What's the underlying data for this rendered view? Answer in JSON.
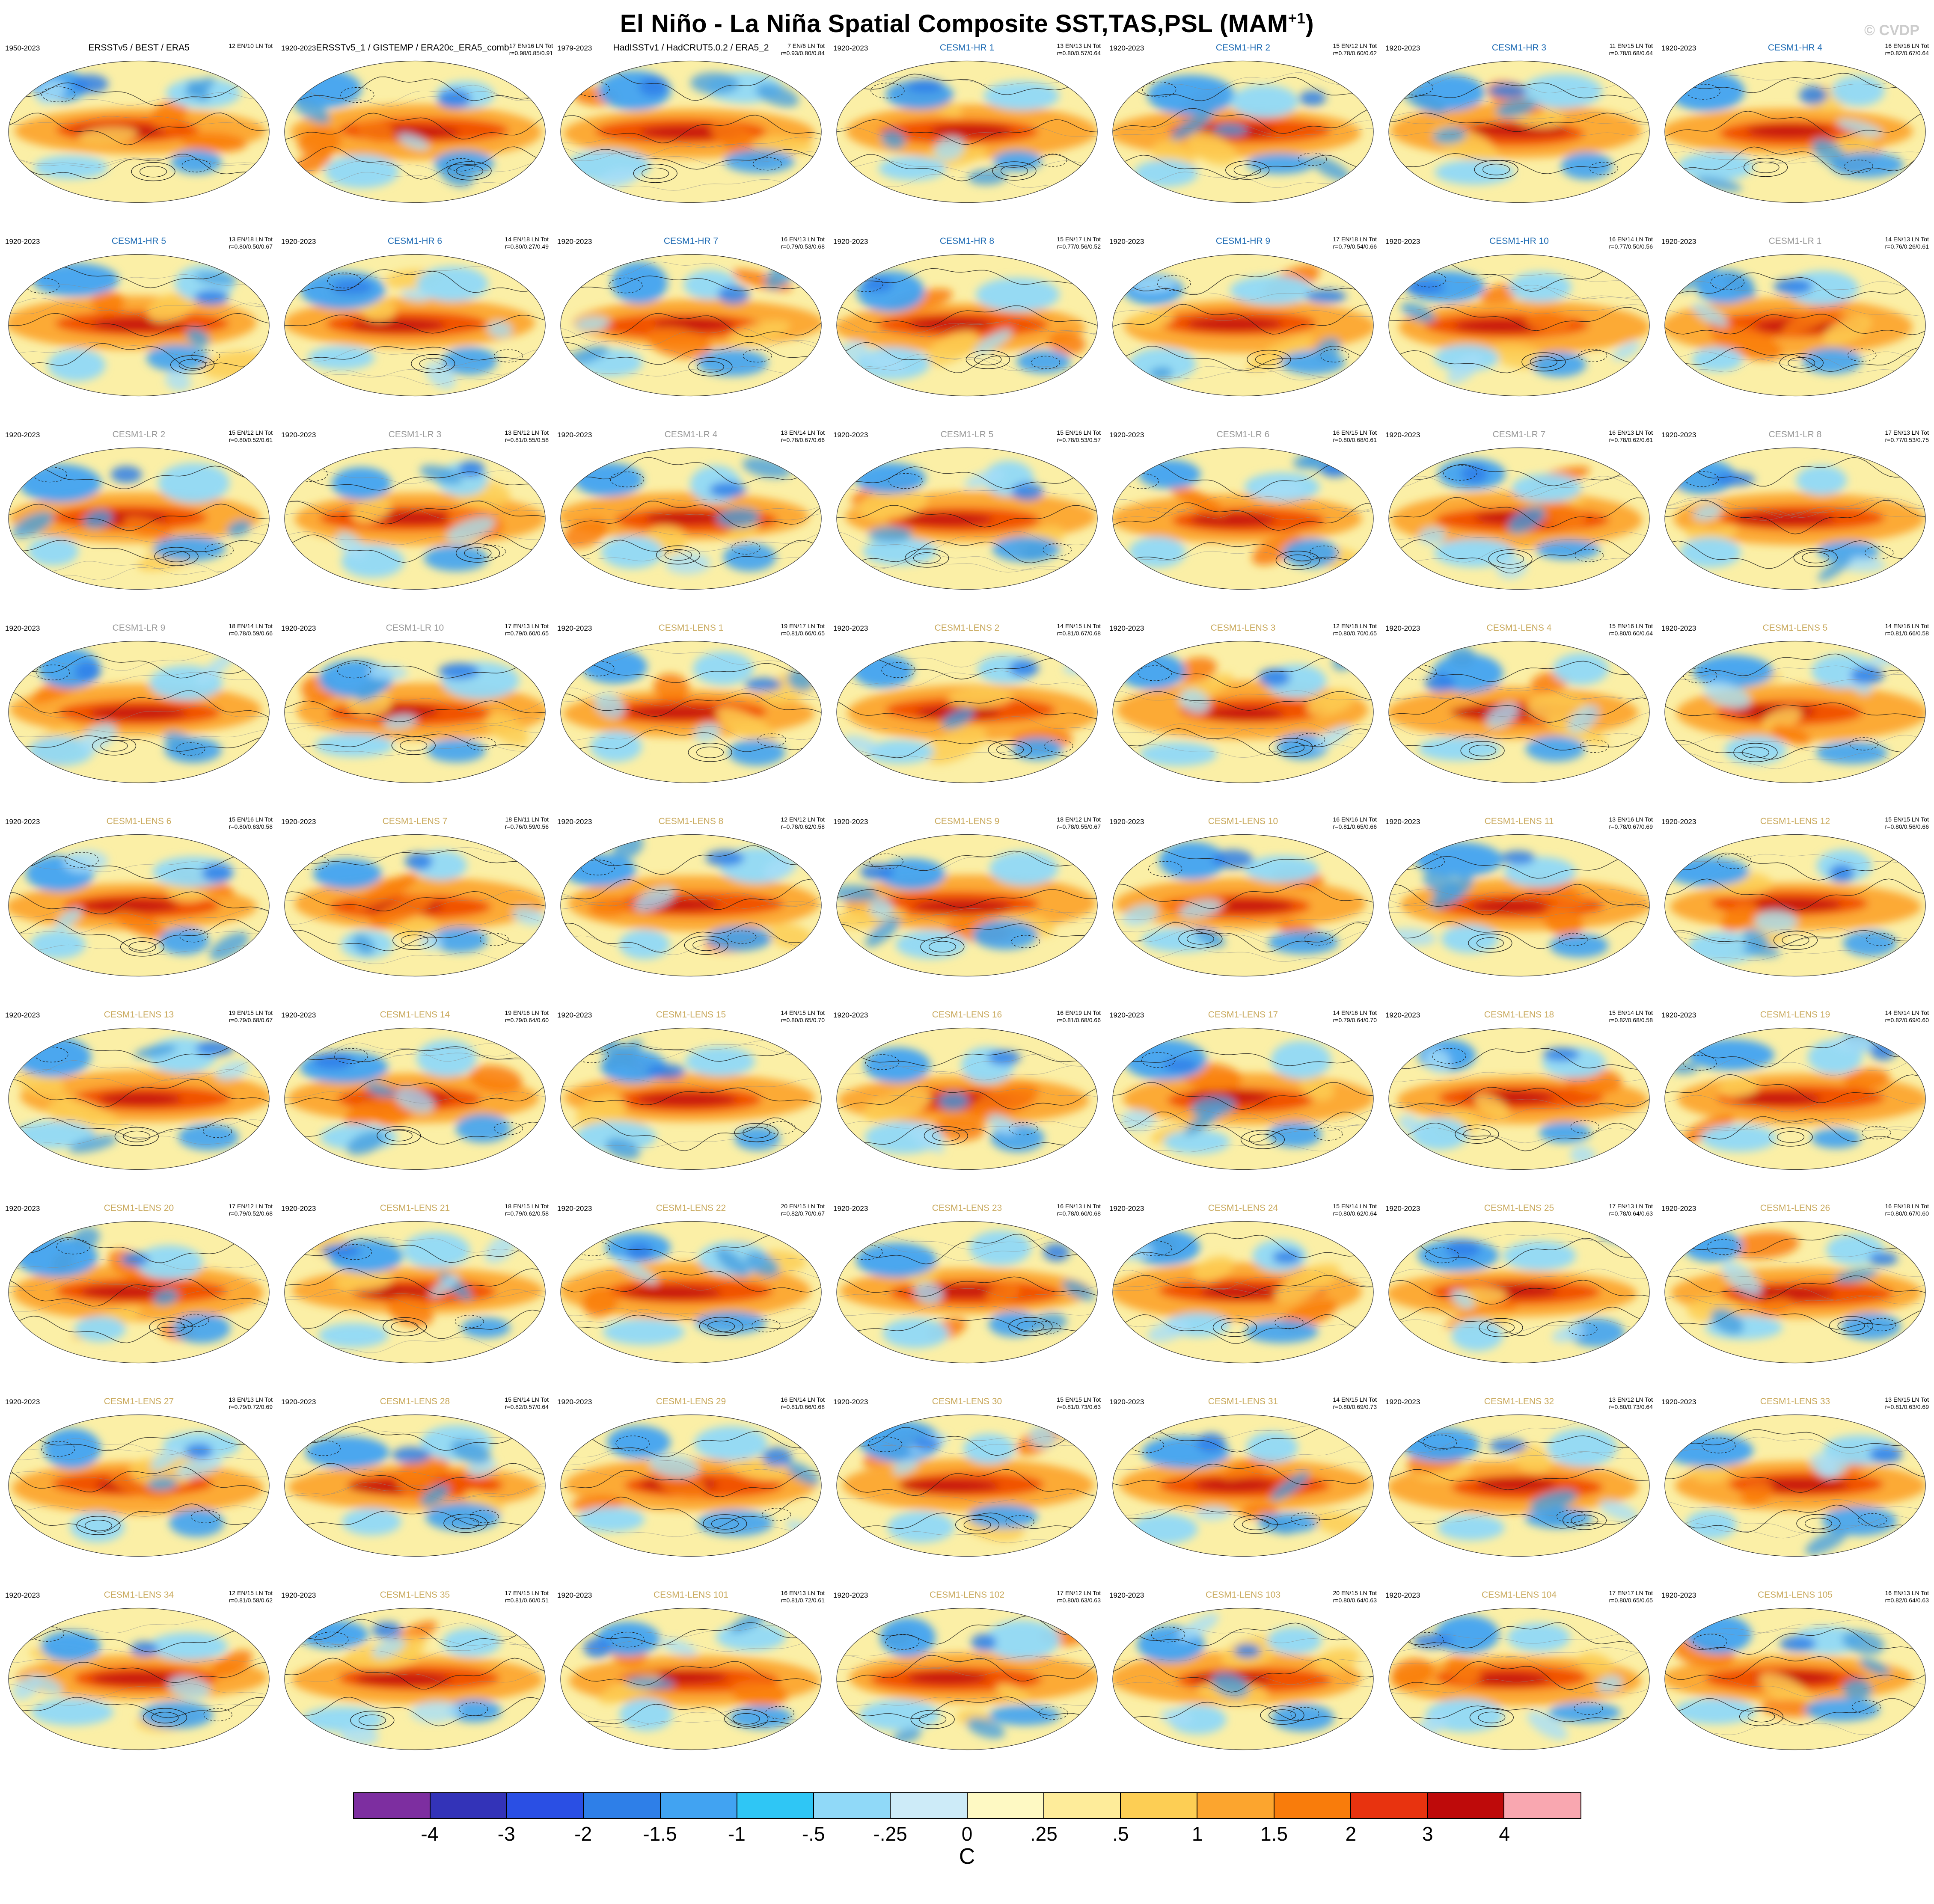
{
  "page": {
    "title_main": "El Niño - La Niña Spatial Composite SST,TAS,PSL (MAM",
    "title_sup": "+1",
    "title_close": ")",
    "copyright": "© CVDP"
  },
  "groups": {
    "obs": "#000000",
    "hr": "#1f6cb4",
    "lr": "#9a9a9a",
    "lens": "#c9a95c"
  },
  "colorbar": {
    "unit": "C",
    "labels": [
      "-4",
      "-3",
      "-2",
      "-1.5",
      "-1",
      "-.5",
      "-.25",
      "0",
      ".25",
      ".5",
      "1",
      "1.5",
      "2",
      "3",
      "4"
    ],
    "colors": [
      "#7D2EA0",
      "#3333B8",
      "#2A4FE4",
      "#2E7FE8",
      "#41A3F2",
      "#2FC6F5",
      "#90D9F8",
      "#CDEBF8",
      "#FEF9C3",
      "#FEEC9A",
      "#FDCE54",
      "#FCA52E",
      "#F97C0B",
      "#E8330F",
      "#BE0A0A",
      "#F9A7B0"
    ]
  },
  "chart_data": {
    "type": "heatmap",
    "subtype": "global-anomaly-map-grid",
    "title": "El Niño - La Niña Spatial Composite SST,TAS,PSL (MAM+1)",
    "projection": "robinson",
    "variables": "SST, TAS, PSL composite anomaly",
    "units": "C",
    "levels": [
      -4,
      -3,
      -2,
      -1.5,
      -1,
      -0.5,
      -0.25,
      0,
      0.25,
      0.5,
      1,
      1.5,
      2,
      3,
      4
    ],
    "grid_layout": {
      "rows": 9,
      "columns": 7
    },
    "panels": [
      {
        "title": "ERSSTv5 / BEST / ERA5",
        "group": "obs",
        "years": "1950-2023",
        "counts": "12 EN/10 LN Tot",
        "r": ""
      },
      {
        "title": "ERSSTv5_1 / GISTEMP / ERA20c_ERA5_comb",
        "group": "obs",
        "years": "1920-2023",
        "counts": "17 EN/16 LN Tot",
        "r": "r=0.98/0.85/0.91"
      },
      {
        "title": "HadISSTv1 / HadCRUT5.0.2 / ERA5_2",
        "group": "obs",
        "years": "1979-2023",
        "counts": "7 EN/6 LN Tot",
        "r": "r=0.93/0.80/0.84"
      },
      {
        "title": "CESM1-HR 1",
        "group": "hr",
        "years": "1920-2023",
        "counts": "13 EN/13 LN Tot",
        "r": "r=0.80/0.57/0.64"
      },
      {
        "title": "CESM1-HR 2",
        "group": "hr",
        "years": "1920-2023",
        "counts": "15 EN/12 LN Tot",
        "r": "r=0.78/0.60/0.62"
      },
      {
        "title": "CESM1-HR 3",
        "group": "hr",
        "years": "1920-2023",
        "counts": "11 EN/15 LN Tot",
        "r": "r=0.78/0.68/0.64"
      },
      {
        "title": "CESM1-HR 4",
        "group": "hr",
        "years": "1920-2023",
        "counts": "16 EN/16 LN Tot",
        "r": "r=0.82/0.67/0.64"
      },
      {
        "title": "CESM1-HR 5",
        "group": "hr",
        "years": "1920-2023",
        "counts": "13 EN/18 LN Tot",
        "r": "r=0.80/0.50/0.67"
      },
      {
        "title": "CESM1-HR 6",
        "group": "hr",
        "years": "1920-2023",
        "counts": "14 EN/18 LN Tot",
        "r": "r=0.80/0.27/0.49"
      },
      {
        "title": "CESM1-HR 7",
        "group": "hr",
        "years": "1920-2023",
        "counts": "16 EN/13 LN Tot",
        "r": "r=0.79/0.53/0.68"
      },
      {
        "title": "CESM1-HR 8",
        "group": "hr",
        "years": "1920-2023",
        "counts": "15 EN/17 LN Tot",
        "r": "r=0.77/0.56/0.52"
      },
      {
        "title": "CESM1-HR 9",
        "group": "hr",
        "years": "1920-2023",
        "counts": "17 EN/18 LN Tot",
        "r": "r=0.79/0.54/0.66"
      },
      {
        "title": "CESM1-HR 10",
        "group": "hr",
        "years": "1920-2023",
        "counts": "16 EN/14 LN Tot",
        "r": "r=0.77/0.50/0.56"
      },
      {
        "title": "CESM1-LR 1",
        "group": "lr",
        "years": "1920-2023",
        "counts": "14 EN/13 LN Tot",
        "r": "r=0.76/0.26/0.61"
      },
      {
        "title": "CESM1-LR 2",
        "group": "lr",
        "years": "1920-2023",
        "counts": "15 EN/12 LN Tot",
        "r": "r=0.80/0.52/0.61"
      },
      {
        "title": "CESM1-LR 3",
        "group": "lr",
        "years": "1920-2023",
        "counts": "13 EN/12 LN Tot",
        "r": "r=0.81/0.55/0.58"
      },
      {
        "title": "CESM1-LR 4",
        "group": "lr",
        "years": "1920-2023",
        "counts": "13 EN/14 LN Tot",
        "r": "r=0.78/0.67/0.66"
      },
      {
        "title": "CESM1-LR 5",
        "group": "lr",
        "years": "1920-2023",
        "counts": "15 EN/16 LN Tot",
        "r": "r=0.78/0.53/0.57"
      },
      {
        "title": "CESM1-LR 6",
        "group": "lr",
        "years": "1920-2023",
        "counts": "16 EN/15 LN Tot",
        "r": "r=0.80/0.68/0.61"
      },
      {
        "title": "CESM1-LR 7",
        "group": "lr",
        "years": "1920-2023",
        "counts": "16 EN/13 LN Tot",
        "r": "r=0.78/0.62/0.61"
      },
      {
        "title": "CESM1-LR 8",
        "group": "lr",
        "years": "1920-2023",
        "counts": "17 EN/13 LN Tot",
        "r": "r=0.77/0.53/0.75"
      },
      {
        "title": "CESM1-LR 9",
        "group": "lr",
        "years": "1920-2023",
        "counts": "18 EN/14 LN Tot",
        "r": "r=0.78/0.59/0.66"
      },
      {
        "title": "CESM1-LR 10",
        "group": "lr",
        "years": "1920-2023",
        "counts": "17 EN/13 LN Tot",
        "r": "r=0.79/0.60/0.65"
      },
      {
        "title": "CESM1-LENS 1",
        "group": "lens",
        "years": "1920-2023",
        "counts": "19 EN/17 LN Tot",
        "r": "r=0.81/0.66/0.65"
      },
      {
        "title": "CESM1-LENS 2",
        "group": "lens",
        "years": "1920-2023",
        "counts": "14 EN/15 LN Tot",
        "r": "r=0.81/0.67/0.68"
      },
      {
        "title": "CESM1-LENS 3",
        "group": "lens",
        "years": "1920-2023",
        "counts": "12 EN/18 LN Tot",
        "r": "r=0.80/0.70/0.65"
      },
      {
        "title": "CESM1-LENS 4",
        "group": "lens",
        "years": "1920-2023",
        "counts": "15 EN/16 LN Tot",
        "r": "r=0.80/0.60/0.64"
      },
      {
        "title": "CESM1-LENS 5",
        "group": "lens",
        "years": "1920-2023",
        "counts": "14 EN/16 LN Tot",
        "r": "r=0.81/0.66/0.58"
      },
      {
        "title": "CESM1-LENS 6",
        "group": "lens",
        "years": "1920-2023",
        "counts": "15 EN/16 LN Tot",
        "r": "r=0.80/0.63/0.58"
      },
      {
        "title": "CESM1-LENS 7",
        "group": "lens",
        "years": "1920-2023",
        "counts": "18 EN/11 LN Tot",
        "r": "r=0.76/0.59/0.56"
      },
      {
        "title": "CESM1-LENS 8",
        "group": "lens",
        "years": "1920-2023",
        "counts": "12 EN/12 LN Tot",
        "r": "r=0.78/0.62/0.58"
      },
      {
        "title": "CESM1-LENS 9",
        "group": "lens",
        "years": "1920-2023",
        "counts": "18 EN/12 LN Tot",
        "r": "r=0.78/0.55/0.67"
      },
      {
        "title": "CESM1-LENS 10",
        "group": "lens",
        "years": "1920-2023",
        "counts": "16 EN/16 LN Tot",
        "r": "r=0.81/0.65/0.66"
      },
      {
        "title": "CESM1-LENS 11",
        "group": "lens",
        "years": "1920-2023",
        "counts": "13 EN/16 LN Tot",
        "r": "r=0.78/0.67/0.69"
      },
      {
        "title": "CESM1-LENS 12",
        "group": "lens",
        "years": "1920-2023",
        "counts": "15 EN/15 LN Tot",
        "r": "r=0.80/0.56/0.66"
      },
      {
        "title": "CESM1-LENS 13",
        "group": "lens",
        "years": "1920-2023",
        "counts": "19 EN/15 LN Tot",
        "r": "r=0.79/0.68/0.67"
      },
      {
        "title": "CESM1-LENS 14",
        "group": "lens",
        "years": "1920-2023",
        "counts": "19 EN/16 LN Tot",
        "r": "r=0.79/0.64/0.60"
      },
      {
        "title": "CESM1-LENS 15",
        "group": "lens",
        "years": "1920-2023",
        "counts": "14 EN/15 LN Tot",
        "r": "r=0.80/0.65/0.70"
      },
      {
        "title": "CESM1-LENS 16",
        "group": "lens",
        "years": "1920-2023",
        "counts": "16 EN/19 LN Tot",
        "r": "r=0.81/0.68/0.66"
      },
      {
        "title": "CESM1-LENS 17",
        "group": "lens",
        "years": "1920-2023",
        "counts": "14 EN/16 LN Tot",
        "r": "r=0.79/0.64/0.70"
      },
      {
        "title": "CESM1-LENS 18",
        "group": "lens",
        "years": "1920-2023",
        "counts": "15 EN/14 LN Tot",
        "r": "r=0.82/0.68/0.58"
      },
      {
        "title": "CESM1-LENS 19",
        "group": "lens",
        "years": "1920-2023",
        "counts": "14 EN/14 LN Tot",
        "r": "r=0.82/0.69/0.60"
      },
      {
        "title": "CESM1-LENS 20",
        "group": "lens",
        "years": "1920-2023",
        "counts": "17 EN/12 LN Tot",
        "r": "r=0.79/0.52/0.68"
      },
      {
        "title": "CESM1-LENS 21",
        "group": "lens",
        "years": "1920-2023",
        "counts": "18 EN/15 LN Tot",
        "r": "r=0.79/0.62/0.58"
      },
      {
        "title": "CESM1-LENS 22",
        "group": "lens",
        "years": "1920-2023",
        "counts": "20 EN/15 LN Tot",
        "r": "r=0.82/0.70/0.67"
      },
      {
        "title": "CESM1-LENS 23",
        "group": "lens",
        "years": "1920-2023",
        "counts": "16 EN/13 LN Tot",
        "r": "r=0.78/0.60/0.68"
      },
      {
        "title": "CESM1-LENS 24",
        "group": "lens",
        "years": "1920-2023",
        "counts": "15 EN/14 LN Tot",
        "r": "r=0.80/0.62/0.64"
      },
      {
        "title": "CESM1-LENS 25",
        "group": "lens",
        "years": "1920-2023",
        "counts": "17 EN/13 LN Tot",
        "r": "r=0.78/0.64/0.63"
      },
      {
        "title": "CESM1-LENS 26",
        "group": "lens",
        "years": "1920-2023",
        "counts": "16 EN/18 LN Tot",
        "r": "r=0.80/0.67/0.60"
      },
      {
        "title": "CESM1-LENS 27",
        "group": "lens",
        "years": "1920-2023",
        "counts": "13 EN/13 LN Tot",
        "r": "r=0.79/0.72/0.69"
      },
      {
        "title": "CESM1-LENS 28",
        "group": "lens",
        "years": "1920-2023",
        "counts": "15 EN/14 LN Tot",
        "r": "r=0.82/0.57/0.64"
      },
      {
        "title": "CESM1-LENS 29",
        "group": "lens",
        "years": "1920-2023",
        "counts": "16 EN/14 LN Tot",
        "r": "r=0.81/0.66/0.68"
      },
      {
        "title": "CESM1-LENS 30",
        "group": "lens",
        "years": "1920-2023",
        "counts": "15 EN/15 LN Tot",
        "r": "r=0.81/0.73/0.63"
      },
      {
        "title": "CESM1-LENS 31",
        "group": "lens",
        "years": "1920-2023",
        "counts": "14 EN/15 LN Tot",
        "r": "r=0.80/0.69/0.73"
      },
      {
        "title": "CESM1-LENS 32",
        "group": "lens",
        "years": "1920-2023",
        "counts": "13 EN/12 LN Tot",
        "r": "r=0.80/0.73/0.64"
      },
      {
        "title": "CESM1-LENS 33",
        "group": "lens",
        "years": "1920-2023",
        "counts": "13 EN/15 LN Tot",
        "r": "r=0.81/0.63/0.69"
      },
      {
        "title": "CESM1-LENS 34",
        "group": "lens",
        "years": "1920-2023",
        "counts": "12 EN/15 LN Tot",
        "r": "r=0.81/0.58/0.62"
      },
      {
        "title": "CESM1-LENS 35",
        "group": "lens",
        "years": "1920-2023",
        "counts": "17 EN/15 LN Tot",
        "r": "r=0.81/0.60/0.51"
      },
      {
        "title": "CESM1-LENS 101",
        "group": "lens",
        "years": "1920-2023",
        "counts": "16 EN/13 LN Tot",
        "r": "r=0.81/0.72/0.61"
      },
      {
        "title": "CESM1-LENS 102",
        "group": "lens",
        "years": "1920-2023",
        "counts": "17 EN/12 LN Tot",
        "r": "r=0.80/0.63/0.63"
      },
      {
        "title": "CESM1-LENS 103",
        "group": "lens",
        "years": "1920-2023",
        "counts": "20 EN/15 LN Tot",
        "r": "r=0.80/0.64/0.63"
      },
      {
        "title": "CESM1-LENS 104",
        "group": "lens",
        "years": "1920-2023",
        "counts": "17 EN/17 LN Tot",
        "r": "r=0.80/0.65/0.65"
      },
      {
        "title": "CESM1-LENS 105",
        "group": "lens",
        "years": "1920-2023",
        "counts": "16 EN/13 LN Tot",
        "r": "r=0.82/0.64/0.63"
      }
    ]
  }
}
